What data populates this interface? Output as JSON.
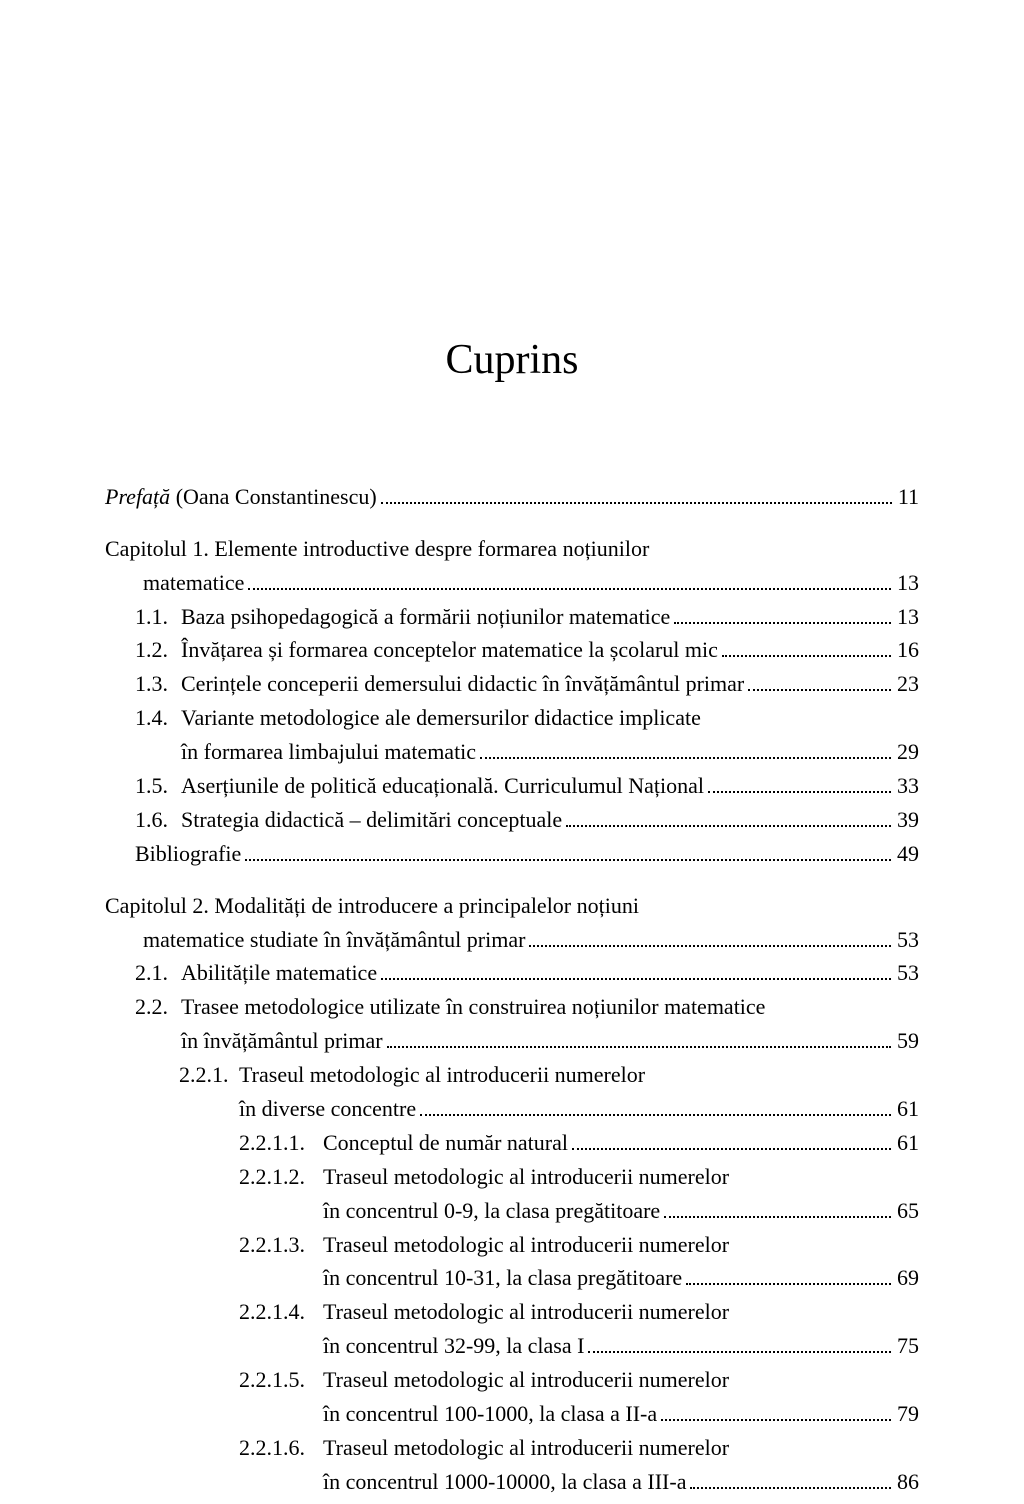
{
  "title": "Cuprins",
  "entries": {
    "prefata_label": "Prefață",
    "prefata_author": " (Oana Constantinescu)",
    "prefata_page": "11",
    "cap1_line1": "Capitolul 1. Elemente introductive despre formarea noțiunilor",
    "cap1_line2": "matematice",
    "cap1_page": "13",
    "s1_1_num": "1.1.",
    "s1_1_txt": "Baza psihopedagogică a formării noțiunilor matematice",
    "s1_1_page": "13",
    "s1_2_num": "1.2.",
    "s1_2_txt": "Învățarea și formarea conceptelor matematice la școlarul mic ",
    "s1_2_page": "16",
    "s1_3_num": "1.3.",
    "s1_3_txt": "Cerințele conceperii demersului didactic în învățământul primar ",
    "s1_3_page": "23",
    "s1_4_num": "1.4.",
    "s1_4_line1": "Variante metodologice ale demersurilor didactice implicate",
    "s1_4_line2": "în formarea limbajului matematic",
    "s1_4_page": "29",
    "s1_5_num": "1.5.",
    "s1_5_txt": "Aserțiunile de politică educațională. Curriculumul Național",
    "s1_5_page": "33",
    "s1_6_num": "1.6.",
    "s1_6_txt": "Strategia didactică – delimitări conceptuale ",
    "s1_6_page": "39",
    "s1_bib_txt": "Bibliografie ",
    "s1_bib_page": "49",
    "cap2_line1": "Capitolul 2. Modalități de introducere a principalelor noțiuni",
    "cap2_line2": "matematice studiate în învățământul primar",
    "cap2_page": "53",
    "s2_1_num": "2.1.",
    "s2_1_txt": "Abilitățile matematice",
    "s2_1_page": "53",
    "s2_2_num": "2.2.",
    "s2_2_line1": "Trasee metodologice utilizate în construirea noțiunilor matematice",
    "s2_2_line2": "în învățământul primar",
    "s2_2_page": "59",
    "s2_2_1_num": "2.2.1.",
    "s2_2_1_line1": "Traseul metodologic al introducerii numerelor",
    "s2_2_1_line2": "în diverse concentre ",
    "s2_2_1_page": "61",
    "s2_2_1_1_num": "2.2.1.1.",
    "s2_2_1_1_txt": "Conceptul de număr natural ",
    "s2_2_1_1_page": "61",
    "s2_2_1_2_num": "2.2.1.2.",
    "s2_2_1_2_line1": "Traseul metodologic al introducerii numerelor",
    "s2_2_1_2_line2": "în concentrul 0-9, la clasa pregătitoare",
    "s2_2_1_2_page": "65",
    "s2_2_1_3_num": "2.2.1.3.",
    "s2_2_1_3_line1": "Traseul metodologic al introducerii numerelor",
    "s2_2_1_3_line2": "în concentrul 10-31, la clasa pregătitoare ",
    "s2_2_1_3_page": "69",
    "s2_2_1_4_num": "2.2.1.4.",
    "s2_2_1_4_line1": "Traseul metodologic al introducerii numerelor",
    "s2_2_1_4_line2": "în concentrul 32-99, la clasa I",
    "s2_2_1_4_page": "75",
    "s2_2_1_5_num": "2.2.1.5.",
    "s2_2_1_5_line1": "Traseul metodologic al introducerii numerelor",
    "s2_2_1_5_line2": "în concentrul 100-1000, la clasa a II-a",
    "s2_2_1_5_page": "79",
    "s2_2_1_6_num": "2.2.1.6.",
    "s2_2_1_6_line1": "Traseul metodologic al introducerii numerelor",
    "s2_2_1_6_line2": "în concentrul 1000-10000, la clasa a III-a ",
    "s2_2_1_6_page": "86"
  },
  "style": {
    "background_color": "#ffffff",
    "text_color": "#000000",
    "title_fontsize": 42,
    "body_fontsize": 22,
    "font_family": "Times New Roman"
  }
}
